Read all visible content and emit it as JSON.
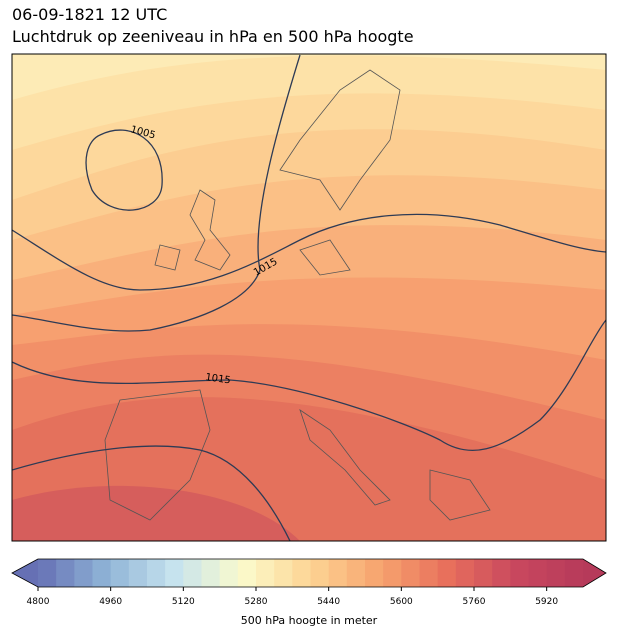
{
  "header": {
    "title": "06-09-1821 12 UTC",
    "subtitle": "Luchtdruk op zeeniveau in hPa en 500 hPa hoogte"
  },
  "map": {
    "isobar_labels": [
      1005,
      1015,
      1015
    ]
  },
  "colorbar": {
    "label": "500 hPa hoogte in meter",
    "range": [
      4800,
      6000
    ],
    "step": 40,
    "ticks": [
      4800,
      4960,
      5120,
      5280,
      5440,
      5600,
      5760,
      5920
    ],
    "colors": [
      "#6670b4",
      "#8fb3d6",
      "#c6e3ee",
      "#fbfbcc",
      "#fdd494",
      "#f7a46f",
      "#e8705c",
      "#c9485e",
      "#b63a5a"
    ]
  }
}
